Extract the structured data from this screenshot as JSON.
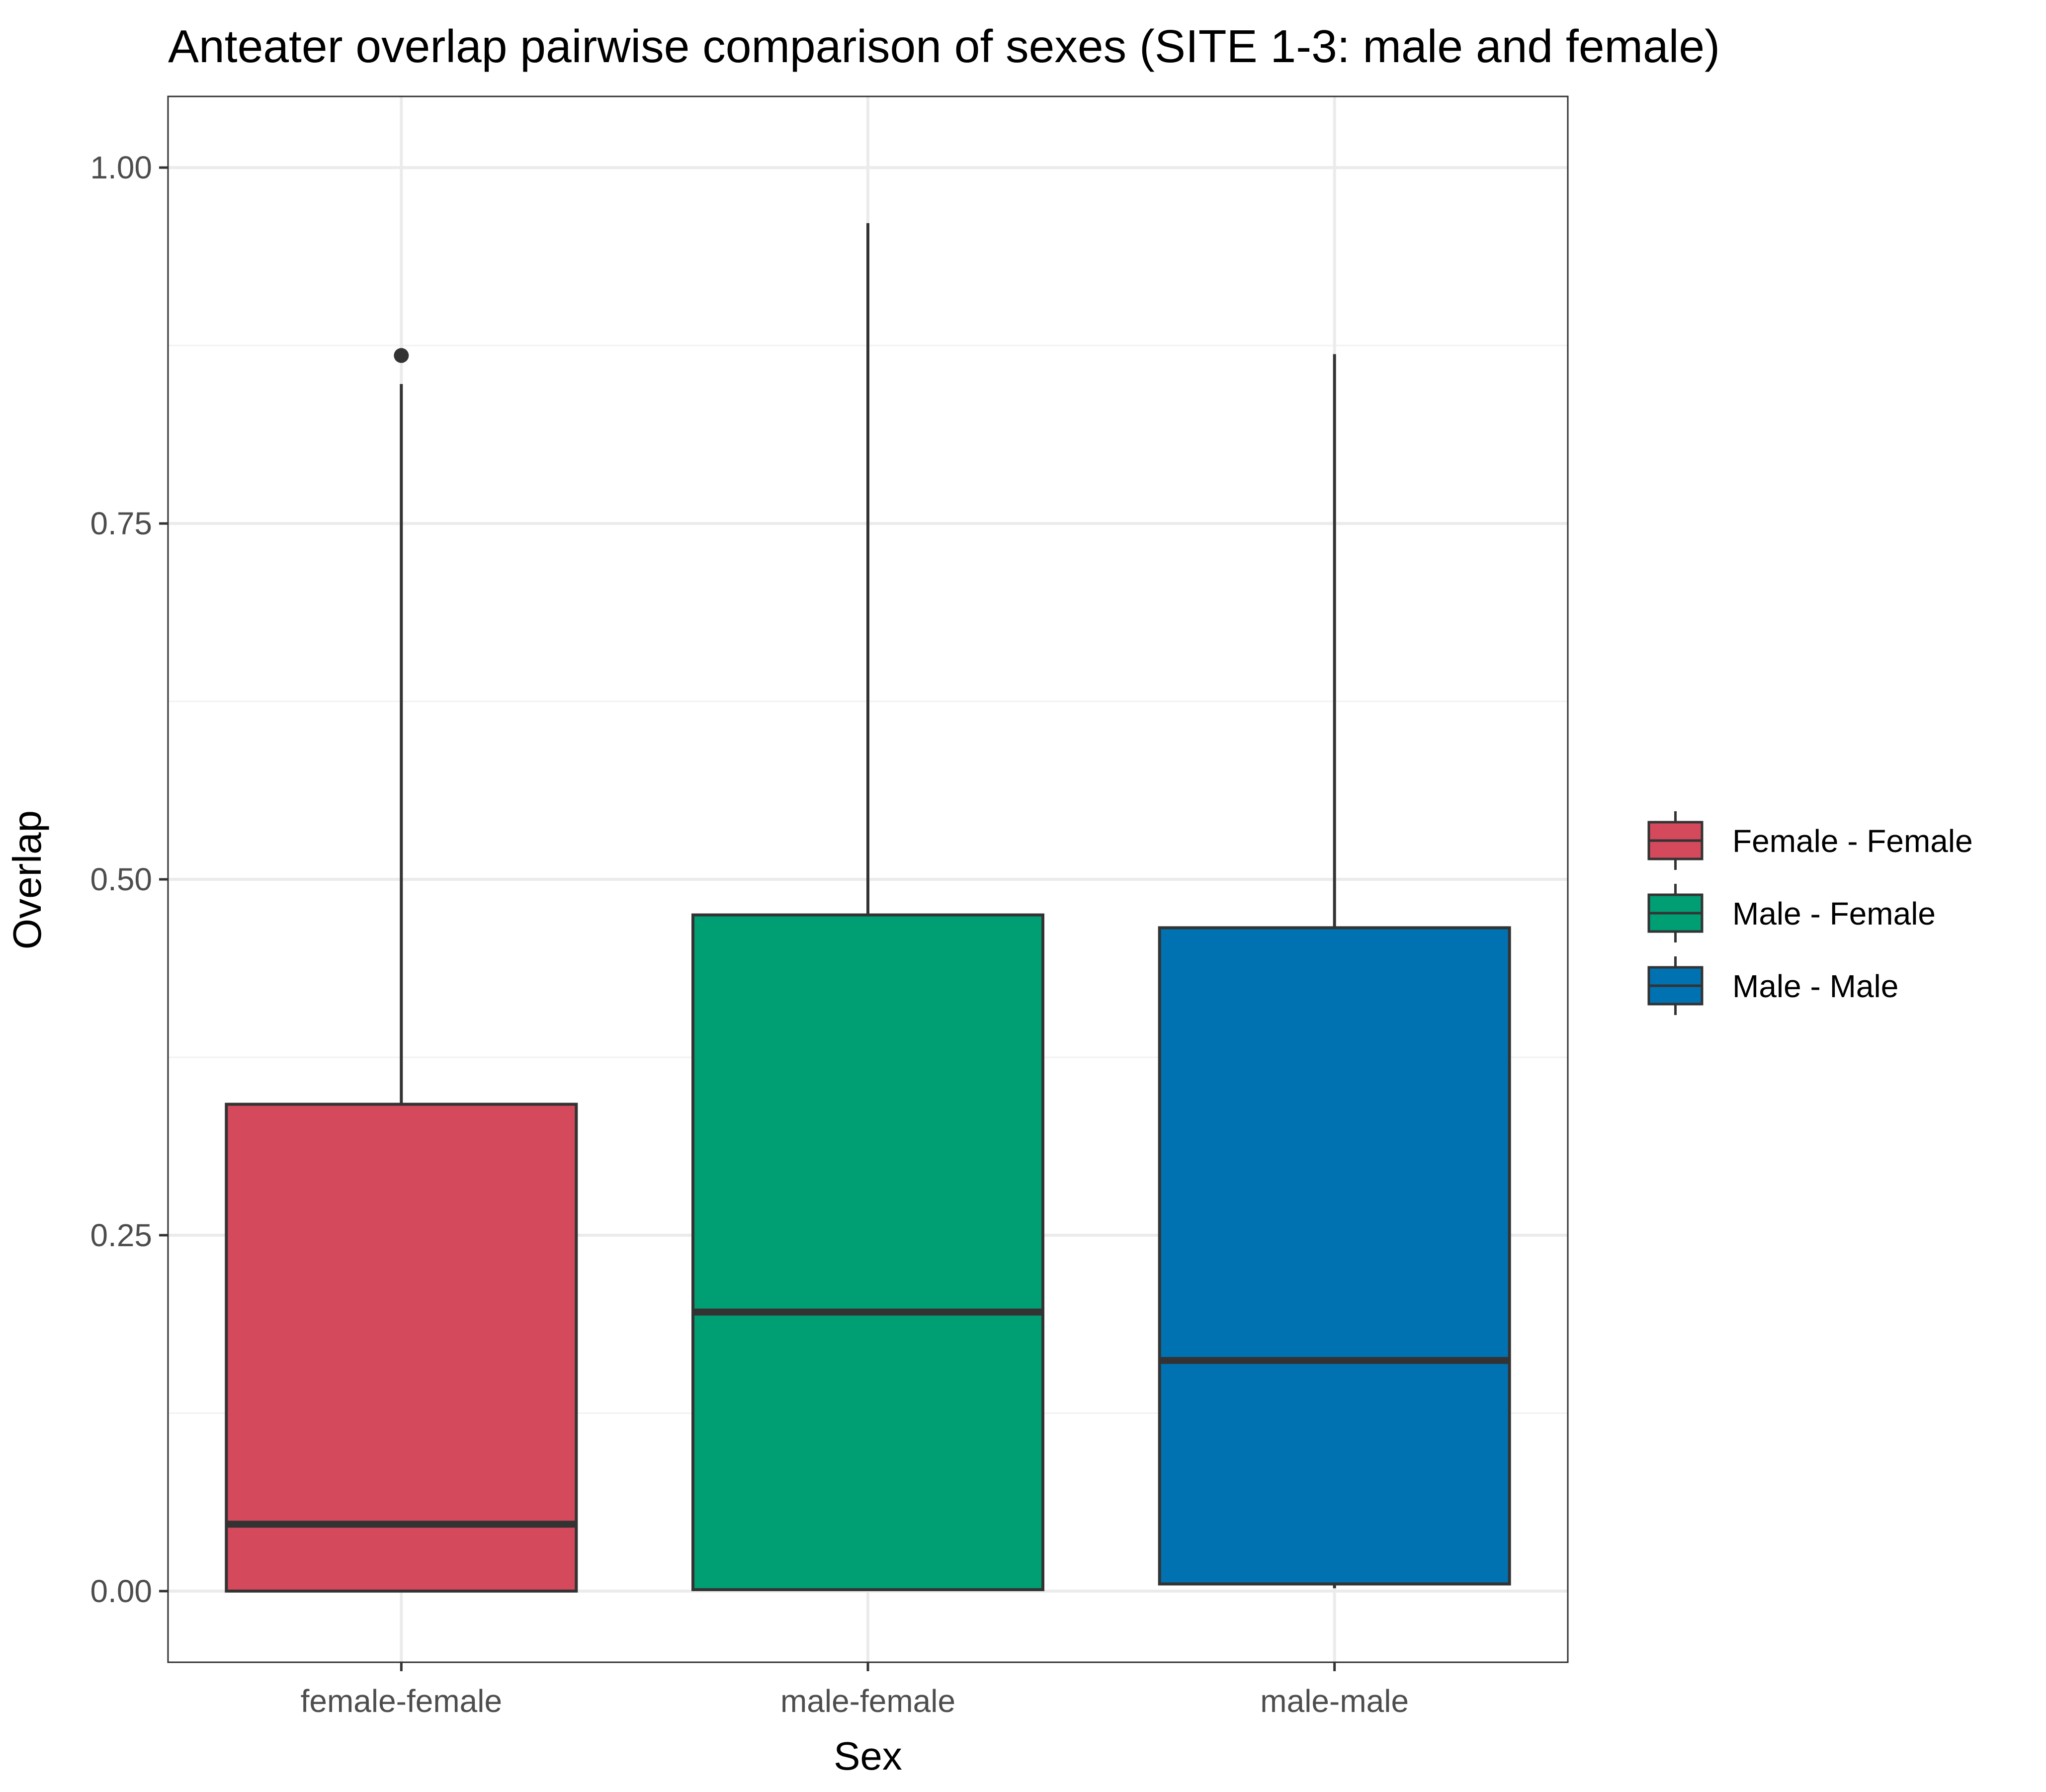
{
  "chart_data": {
    "type": "box",
    "title": "Anteater overlap pairwise comparison of sexes (SITE 1-3: male and female)",
    "xlabel": "Sex",
    "ylabel": "Overlap",
    "ylim": [
      -0.05,
      1.05
    ],
    "y_ticks": [
      0.0,
      0.25,
      0.5,
      0.75,
      1.0
    ],
    "y_tick_labels": [
      "0.00",
      "0.25",
      "0.50",
      "0.75",
      "1.00"
    ],
    "grid": true,
    "legend_position": "right",
    "categories": [
      "female-female",
      "male-female",
      "male-male"
    ],
    "series": [
      {
        "name": "Female - Female",
        "category": "female-female",
        "color": "#d4495c",
        "whisker_low": 0.0,
        "q1": 0.0,
        "median": 0.047,
        "q3": 0.342,
        "whisker_high": 0.848,
        "outliers": [
          0.868
        ]
      },
      {
        "name": "Male - Female",
        "category": "male-female",
        "color": "#009e73",
        "whisker_low": 0.001,
        "q1": 0.001,
        "median": 0.196,
        "q3": 0.475,
        "whisker_high": 0.961,
        "outliers": []
      },
      {
        "name": "Male - Male",
        "category": "male-male",
        "color": "#0072b2",
        "whisker_low": 0.002,
        "q1": 0.005,
        "median": 0.162,
        "q3": 0.466,
        "whisker_high": 0.869,
        "outliers": []
      }
    ],
    "colors": {
      "panel_border": "#333333",
      "grid_major": "#ebebeb",
      "grid_minor": "#f2f2f2",
      "box_outline": "#333333",
      "tick_text": "#4d4d4d"
    }
  }
}
